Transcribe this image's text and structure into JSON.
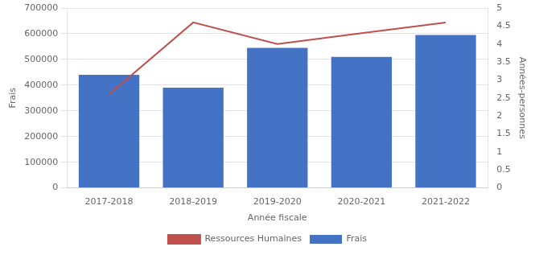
{
  "chart_data": {
    "type": "bar",
    "categories": [
      "2017-2018",
      "2018-2019",
      "2019-2020",
      "2020-2021",
      "2021-2022"
    ],
    "xlabel": "Année fiscale",
    "ylabel": "Frais",
    "y2label": "Années-personnes",
    "series": [
      {
        "name": "Frais",
        "type": "bar",
        "color": "#4472C4",
        "values": [
          440000,
          390000,
          545000,
          510000,
          595000
        ]
      },
      {
        "name": "Ressources Humaines",
        "type": "line",
        "color": "#C0504D",
        "axis": "y2",
        "values": [
          2.6,
          4.6,
          4.0,
          4.3,
          4.6
        ]
      }
    ],
    "ylim": [
      0,
      700000
    ],
    "yticks": [
      0,
      100000,
      200000,
      300000,
      400000,
      500000,
      600000,
      700000
    ],
    "y2lim": [
      0,
      5
    ],
    "y2ticks": [
      0,
      0.5,
      1,
      1.5,
      2,
      2.5,
      3,
      3.5,
      4,
      4.5,
      5
    ],
    "grid": true,
    "legend": "bottom"
  }
}
